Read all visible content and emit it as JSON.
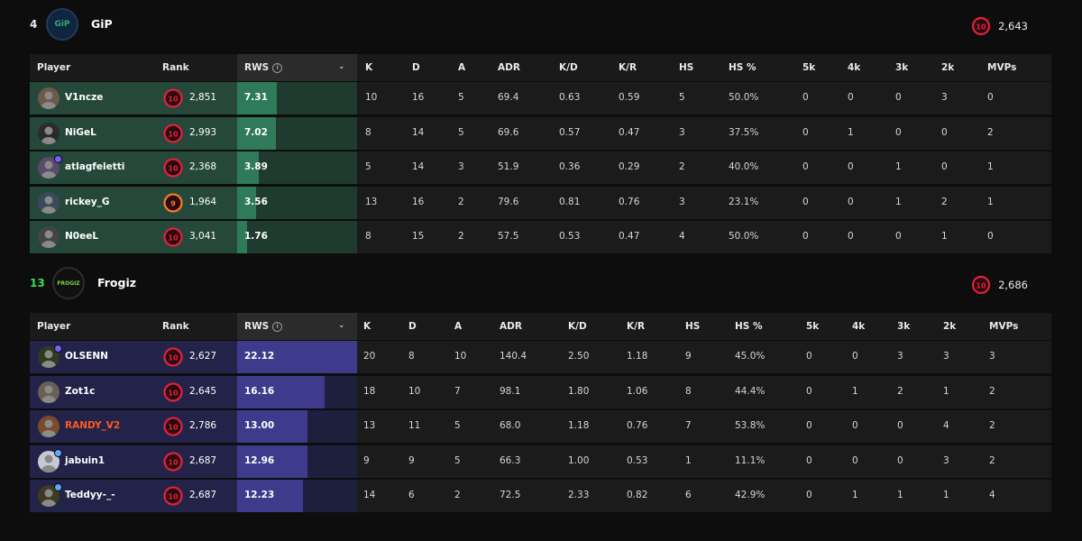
{
  "columns": {
    "player": "Player",
    "rank": "Rank",
    "rws": "RWS",
    "k": "K",
    "d": "D",
    "a": "A",
    "adr": "ADR",
    "kd": "K/D",
    "kr": "K/R",
    "hs": "HS",
    "hs_pct": "HS %",
    "k5": "5k",
    "k4": "4k",
    "k3": "3k",
    "k2": "2k",
    "mvps": "MVPs"
  },
  "colors": {
    "gip_row": "#25483a",
    "gip_rws": "#2f7a58",
    "frog_row": "#23234a",
    "frog_rws": "#3e3b8c",
    "level_ring": "#e0213b",
    "level9_ring": "#f77c1c",
    "highlight_name": "#ff5a1f"
  },
  "team1": {
    "score": "4",
    "logo_text": "GiP",
    "name": "GiP",
    "avg_elo": "2,643",
    "avg_level": "10",
    "players": [
      {
        "name": "V1ncze",
        "level": "10",
        "elo": "2,851",
        "rws": "7.31",
        "rws_fraction": 0.33,
        "k": "10",
        "d": "16",
        "a": "5",
        "adr": "69.4",
        "kd": "0.63",
        "kr": "0.59",
        "hs": "5",
        "hs_pct": "50.0%",
        "k5": "0",
        "k4": "0",
        "k3": "0",
        "k2": "3",
        "mvps": "0"
      },
      {
        "name": "NiGeL",
        "level": "10",
        "elo": "2,993",
        "rws": "7.02",
        "rws_fraction": 0.32,
        "k": "8",
        "d": "14",
        "a": "5",
        "adr": "69.6",
        "kd": "0.57",
        "kr": "0.47",
        "hs": "3",
        "hs_pct": "37.5%",
        "k5": "0",
        "k4": "1",
        "k3": "0",
        "k2": "0",
        "mvps": "2"
      },
      {
        "name": "atlagfeletti",
        "level": "10",
        "elo": "2,368",
        "rws": "3.89",
        "rws_fraction": 0.18,
        "k": "5",
        "d": "14",
        "a": "3",
        "adr": "51.9",
        "kd": "0.36",
        "kr": "0.29",
        "hs": "2",
        "hs_pct": "40.0%",
        "k5": "0",
        "k4": "0",
        "k3": "1",
        "k2": "0",
        "mvps": "1"
      },
      {
        "name": "rickey_G",
        "level": "9",
        "elo": "1,964",
        "rws": "3.56",
        "rws_fraction": 0.16,
        "k": "13",
        "d": "16",
        "a": "2",
        "adr": "79.6",
        "kd": "0.81",
        "kr": "0.76",
        "hs": "3",
        "hs_pct": "23.1%",
        "k5": "0",
        "k4": "0",
        "k3": "1",
        "k2": "2",
        "mvps": "1"
      },
      {
        "name": "N0eeL",
        "level": "10",
        "elo": "3,041",
        "rws": "1.76",
        "rws_fraction": 0.08,
        "k": "8",
        "d": "15",
        "a": "2",
        "adr": "57.5",
        "kd": "0.53",
        "kr": "0.47",
        "hs": "4",
        "hs_pct": "50.0%",
        "k5": "0",
        "k4": "0",
        "k3": "0",
        "k2": "1",
        "mvps": "0"
      }
    ]
  },
  "team2": {
    "score": "13",
    "logo_text": "FROGIZ",
    "name": "Frogiz",
    "avg_elo": "2,686",
    "avg_level": "10",
    "players": [
      {
        "name": "OLSENN",
        "level": "10",
        "elo": "2,627",
        "rws": "22.12",
        "rws_fraction": 1.0,
        "k": "20",
        "d": "8",
        "a": "10",
        "adr": "140.4",
        "kd": "2.50",
        "kr": "1.18",
        "hs": "9",
        "hs_pct": "45.0%",
        "k5": "0",
        "k4": "0",
        "k3": "3",
        "k2": "3",
        "mvps": "3"
      },
      {
        "name": "Zot1c",
        "level": "10",
        "elo": "2,645",
        "rws": "16.16",
        "rws_fraction": 0.73,
        "k": "18",
        "d": "10",
        "a": "7",
        "adr": "98.1",
        "kd": "1.80",
        "kr": "1.06",
        "hs": "8",
        "hs_pct": "44.4%",
        "k5": "0",
        "k4": "1",
        "k3": "2",
        "k2": "1",
        "mvps": "2"
      },
      {
        "name": "RANDY_V2",
        "level": "10",
        "elo": "2,786",
        "rws": "13.00",
        "rws_fraction": 0.59,
        "k": "13",
        "d": "11",
        "a": "5",
        "adr": "68.0",
        "kd": "1.18",
        "kr": "0.76",
        "hs": "7",
        "hs_pct": "53.8%",
        "k5": "0",
        "k4": "0",
        "k3": "0",
        "k2": "4",
        "mvps": "2"
      },
      {
        "name": "jabuin1",
        "level": "10",
        "elo": "2,687",
        "rws": "12.96",
        "rws_fraction": 0.59,
        "k": "9",
        "d": "9",
        "a": "5",
        "adr": "66.3",
        "kd": "1.00",
        "kr": "0.53",
        "hs": "1",
        "hs_pct": "11.1%",
        "k5": "0",
        "k4": "0",
        "k3": "0",
        "k2": "3",
        "mvps": "2"
      },
      {
        "name": "Teddyy-_-",
        "level": "10",
        "elo": "2,687",
        "rws": "12.23",
        "rws_fraction": 0.55,
        "k": "14",
        "d": "6",
        "a": "2",
        "adr": "72.5",
        "kd": "2.33",
        "kr": "0.82",
        "hs": "6",
        "hs_pct": "42.9%",
        "k5": "0",
        "k4": "1",
        "k3": "1",
        "k2": "1",
        "mvps": "4"
      }
    ]
  }
}
